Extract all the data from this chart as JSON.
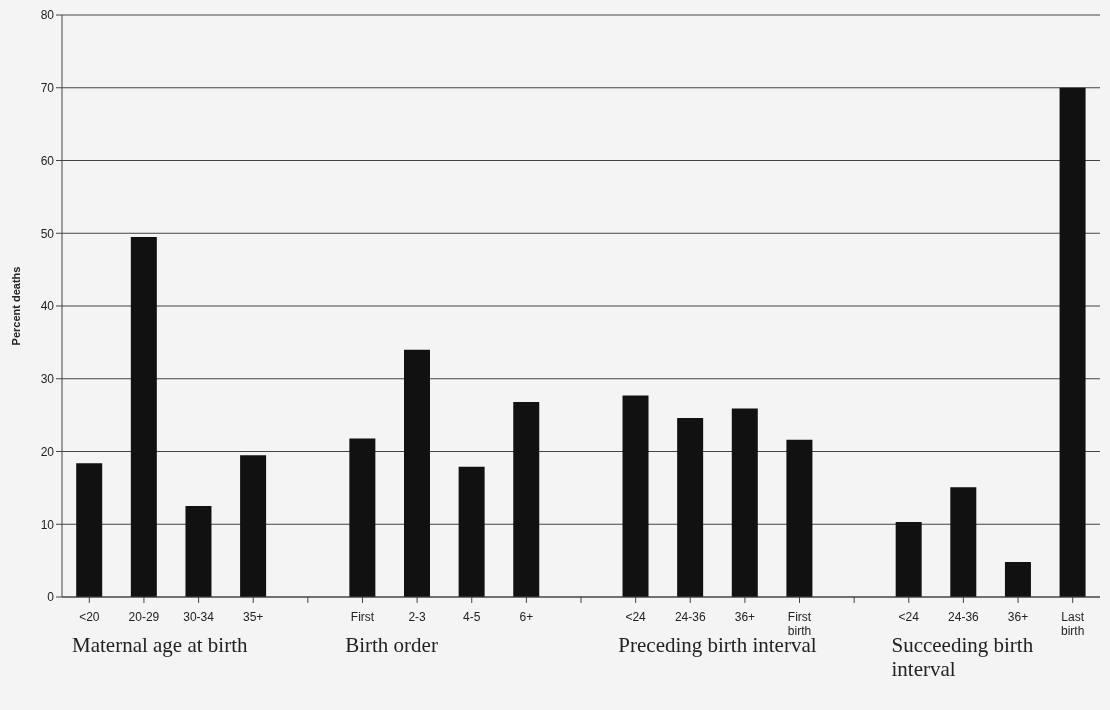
{
  "chart_data": {
    "type": "bar",
    "ylabel": "Percent deaths",
    "categories": [
      "<20",
      "20-29",
      "30-34",
      "35+",
      null,
      "First",
      "2-3",
      "4-5",
      "6+",
      null,
      "<24",
      "24-36",
      "36+",
      "First birth",
      null,
      "<24",
      "24-36",
      "36+",
      "Last birth"
    ],
    "values": [
      18.4,
      49.5,
      12.5,
      19.5,
      null,
      21.8,
      34.0,
      17.9,
      26.8,
      null,
      27.7,
      24.6,
      25.9,
      21.6,
      null,
      10.3,
      15.1,
      4.8,
      70
    ],
    "color": "#111111",
    "ylim": [
      0,
      80
    ],
    "yticks": [
      0,
      10,
      20,
      30,
      40,
      50,
      60,
      70,
      80
    ],
    "grid": "y",
    "annotations": [
      "Maternal age at birth",
      "Birth order",
      "Preceding birth interval",
      "Succeeding birth interval"
    ]
  }
}
